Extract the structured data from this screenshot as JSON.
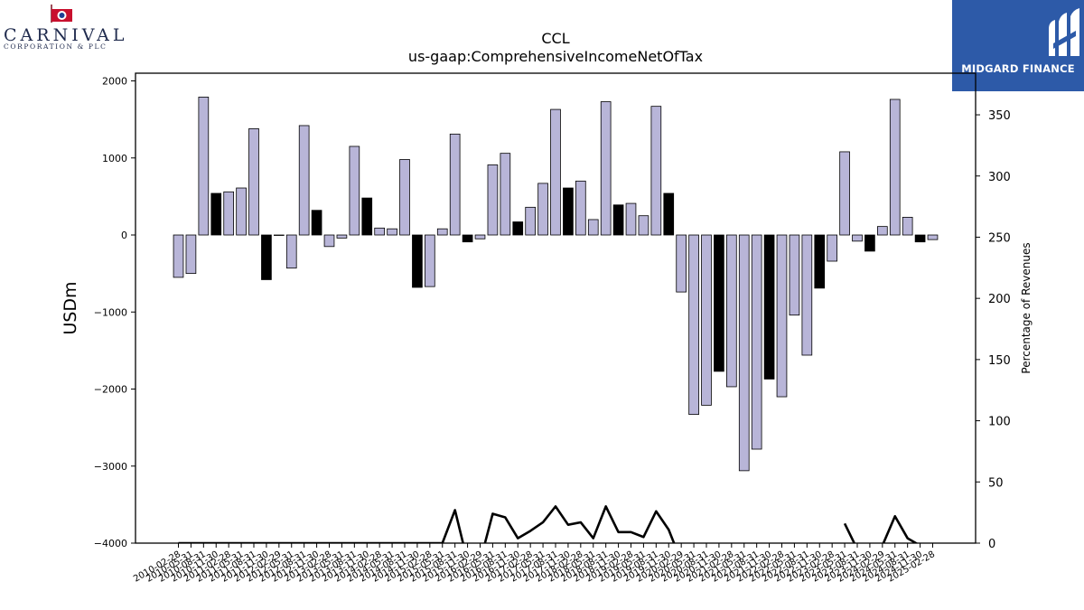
{
  "branding": {
    "left_logo": {
      "wordmark": "CARNIVAL",
      "subtitle": "CORPORATION & PLC",
      "icon": "flag-icon"
    },
    "right_logo": {
      "text": "MIDGARD FINANCE",
      "icon": "midgard-m-icon",
      "background": "#2d5aa8"
    }
  },
  "chart_data": {
    "type": "bar",
    "title": "CCL",
    "subtitle": "us-gaap:ComprehensiveIncomeNetOfTax",
    "ylabel": "USDm",
    "y2label": "Percentage of Revenues",
    "ylim": [
      -4000,
      2100
    ],
    "y2lim": [
      0,
      384
    ],
    "yticks": [
      -4000,
      -3000,
      -2000,
      -1000,
      0,
      1000,
      2000
    ],
    "y2ticks": [
      0,
      50,
      100,
      150,
      200,
      250,
      300,
      350
    ],
    "grid": false,
    "colors": {
      "quarter_bar": "#b8b5d8",
      "annual_bar": "#000000",
      "line": "#000000"
    },
    "categories": [
      "2010-02-28",
      "2010-05-31",
      "2010-08-31",
      "2010-11-30",
      "2011-02-28",
      "2011-05-31",
      "2011-08-31",
      "2011-11-30",
      "2012-02-29",
      "2012-05-31",
      "2012-08-31",
      "2012-11-30",
      "2013-02-28",
      "2013-05-31",
      "2013-08-31",
      "2013-11-30",
      "2014-02-28",
      "2014-05-31",
      "2014-08-31",
      "2014-11-30",
      "2015-02-28",
      "2015-05-31",
      "2015-08-31",
      "2015-11-30",
      "2016-02-29",
      "2016-05-31",
      "2016-08-31",
      "2016-11-30",
      "2017-02-28",
      "2017-05-31",
      "2017-08-31",
      "2017-11-30",
      "2018-02-28",
      "2018-05-31",
      "2018-08-31",
      "2018-11-30",
      "2019-02-28",
      "2019-05-31",
      "2019-08-31",
      "2019-11-30",
      "2020-02-29",
      "2020-05-31",
      "2020-08-31",
      "2020-11-30",
      "2021-02-28",
      "2021-05-31",
      "2021-08-31",
      "2021-11-30",
      "2022-02-28",
      "2022-05-31",
      "2022-08-31",
      "2022-11-30",
      "2023-02-28",
      "2023-05-31",
      "2023-08-31",
      "2023-11-30",
      "2024-02-29",
      "2024-05-31",
      "2024-08-31",
      "2024-11-30",
      "2025-02-28"
    ],
    "values": [
      -550,
      -500,
      1790,
      540,
      560,
      610,
      1380,
      -580,
      0,
      -430,
      1420,
      320,
      -150,
      -40,
      1150,
      480,
      90,
      80,
      980,
      -680,
      -670,
      80,
      1310,
      -90,
      -50,
      910,
      1060,
      170,
      360,
      670,
      1630,
      610,
      700,
      200,
      1730,
      390,
      410,
      250,
      1670,
      540,
      -740,
      -2330,
      -2210,
      -1770,
      -1970,
      -3060,
      -2780,
      -1870,
      -2100,
      -1040,
      -1560,
      -690,
      -340,
      1080,
      -80,
      -210,
      110,
      1760,
      230,
      -90,
      -60
    ],
    "annual": [
      false,
      false,
      false,
      true,
      false,
      false,
      false,
      true,
      false,
      false,
      false,
      true,
      false,
      false,
      false,
      true,
      false,
      false,
      false,
      true,
      false,
      false,
      false,
      true,
      false,
      false,
      false,
      true,
      false,
      false,
      false,
      true,
      false,
      false,
      false,
      true,
      false,
      false,
      false,
      true,
      false,
      false,
      false,
      true,
      false,
      false,
      false,
      true,
      false,
      false,
      false,
      true,
      false,
      false,
      false,
      true,
      false,
      false,
      false,
      true,
      false
    ],
    "line_series": {
      "name": "Percentage of Revenues",
      "values": [
        0,
        0,
        0,
        0,
        0,
        0,
        0,
        0,
        0,
        0,
        0,
        0,
        0,
        0,
        0,
        0,
        0,
        0,
        0,
        0,
        0,
        0,
        27,
        -15,
        -15,
        24,
        21,
        4,
        10,
        17,
        30,
        15,
        17,
        4,
        30,
        9,
        9,
        5,
        26,
        11,
        -15,
        null,
        null,
        null,
        null,
        null,
        null,
        null,
        null,
        null,
        null,
        null,
        null,
        16,
        -5,
        -5,
        -2,
        22,
        4,
        -2,
        null
      ]
    }
  }
}
